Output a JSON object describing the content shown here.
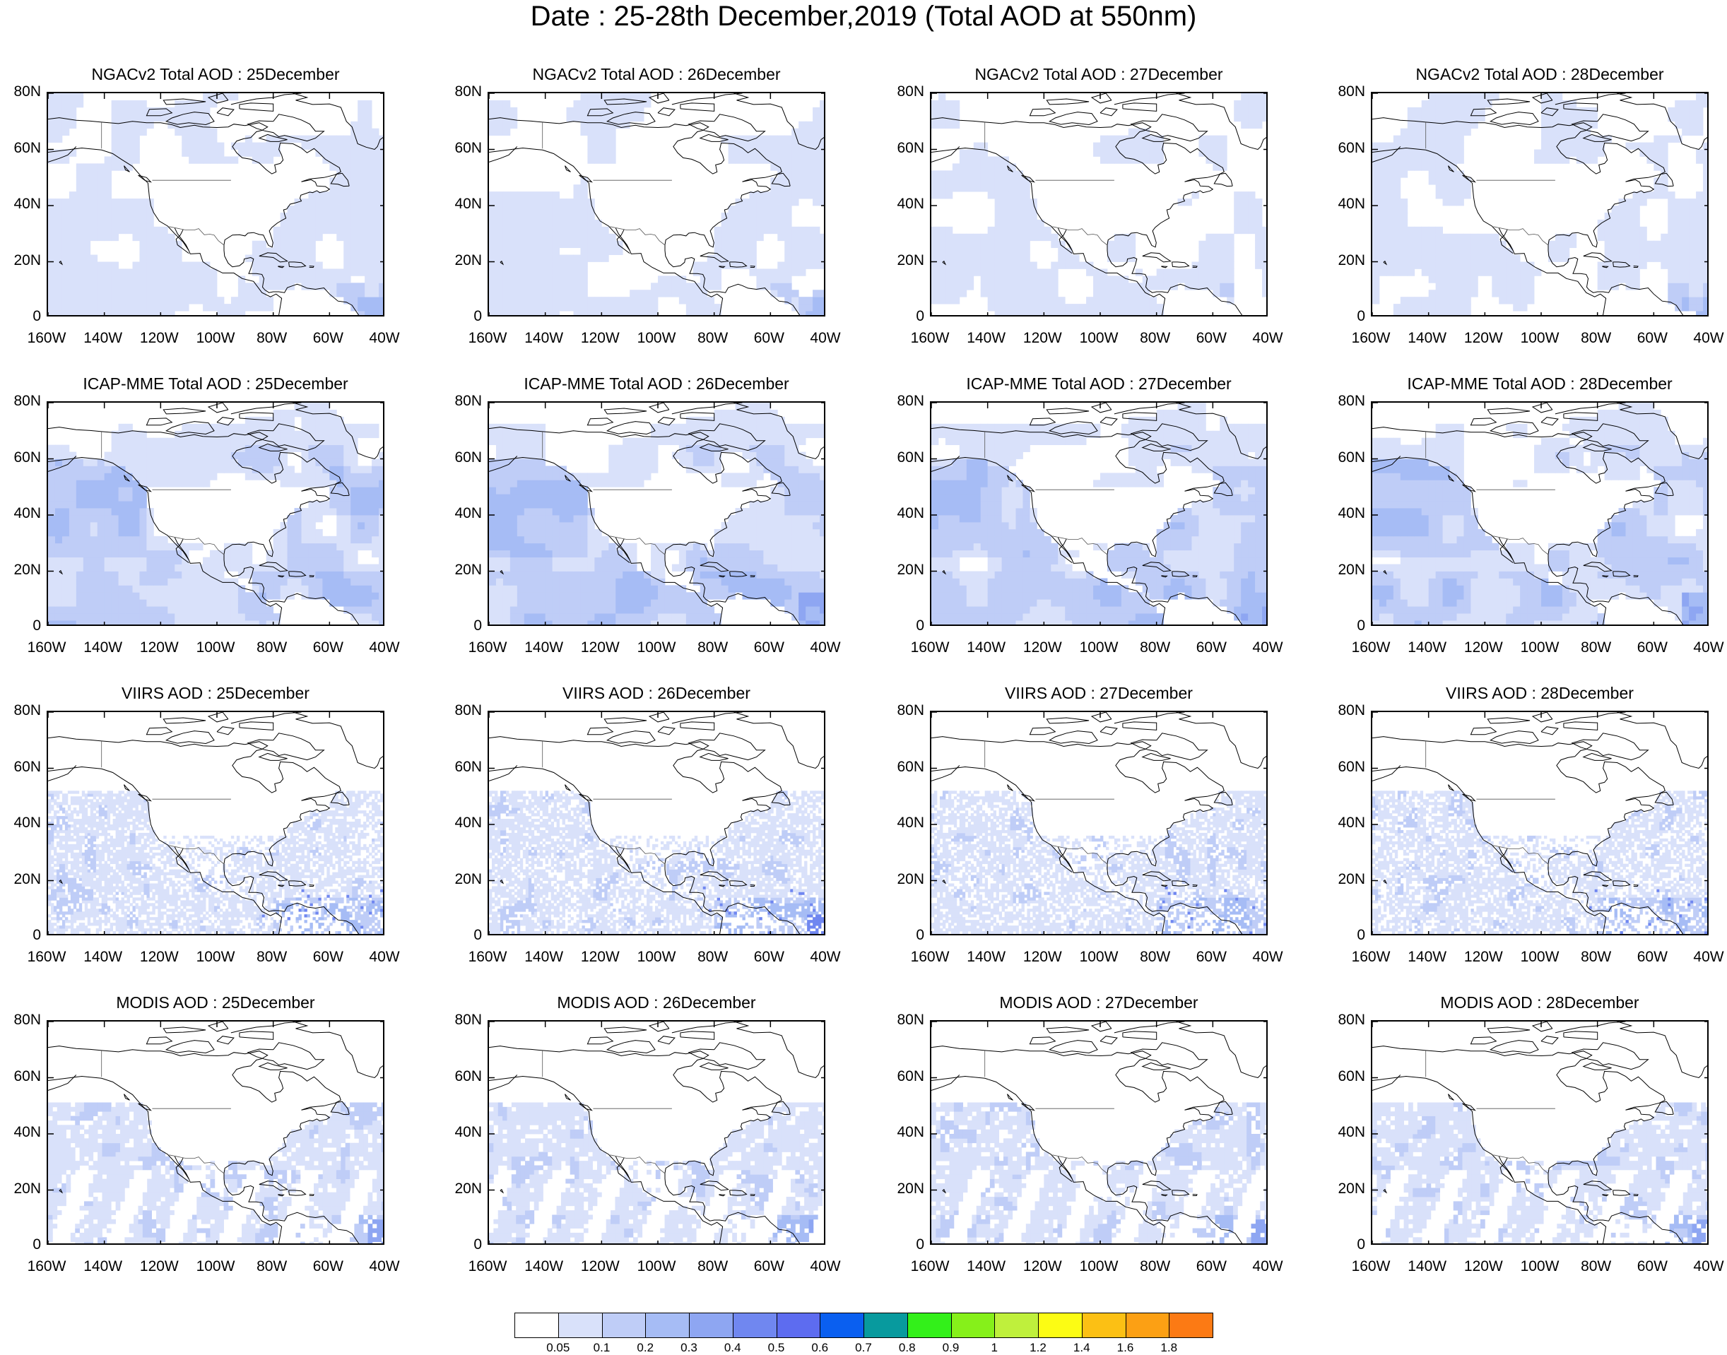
{
  "title": "Date : 25-28th December,2019 (Total AOD at 550nm)",
  "rows": [
    {
      "product": "NGACv2 Total AOD",
      "pattern": "model-low"
    },
    {
      "product": "ICAP-MME Total AOD",
      "pattern": "model-high"
    },
    {
      "product": "VIIRS AOD",
      "pattern": "sat-fine"
    },
    {
      "product": "MODIS AOD",
      "pattern": "sat-coarse"
    }
  ],
  "panel_titles": [
    [
      "NGACv2 Total AOD : 25December",
      "NGACv2 Total AOD : 26December",
      "NGACv2 Total AOD : 27December",
      "NGACv2 Total AOD : 28December"
    ],
    [
      "ICAP-MME Total AOD : 25December",
      "ICAP-MME Total AOD : 26December",
      "ICAP-MME Total AOD : 27December",
      "ICAP-MME Total AOD : 28December"
    ],
    [
      "VIIRS AOD : 25December",
      "VIIRS AOD : 26December",
      "VIIRS AOD : 27December",
      "VIIRS AOD : 28December"
    ],
    [
      "MODIS AOD : 25December",
      "MODIS AOD : 26December",
      "MODIS AOD : 27December",
      "MODIS AOD : 28December"
    ]
  ],
  "lat_ticks": [
    "80N",
    "60N",
    "40N",
    "20N",
    "0"
  ],
  "lon_ticks": [
    "160W",
    "140W",
    "120W",
    "100W",
    "80W",
    "60W",
    "40W"
  ],
  "colorbar": {
    "colors": [
      "#ffffff",
      "#d9e1fa",
      "#bfcdf7",
      "#a6bcf5",
      "#8ea6f2",
      "#7087f0",
      "#5d6cf0",
      "#0a5ff0",
      "#089a9e",
      "#33f01a",
      "#86f01a",
      "#bff03c",
      "#fcfc14",
      "#fcc014",
      "#fca014",
      "#fc7a14",
      "#fc2814"
    ],
    "labels": [
      "0.05",
      "0.1",
      "0.2",
      "0.3",
      "0.4",
      "0.5",
      "0.6",
      "0.7",
      "0.8",
      "0.9",
      "1",
      "1.2",
      "1.4",
      "1.6",
      "1.8"
    ]
  }
}
